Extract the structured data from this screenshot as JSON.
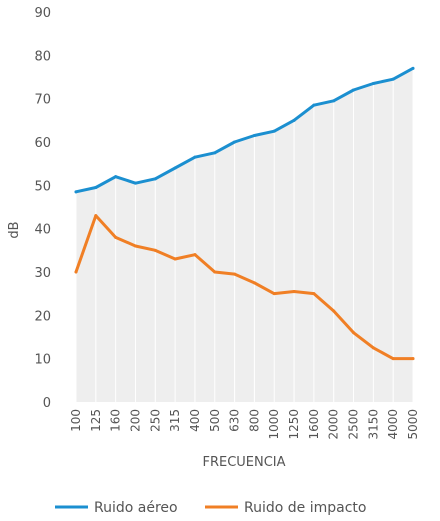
{
  "chart_data": {
    "type": "line",
    "xlabel": "FRECUENCIA",
    "ylabel": "dB",
    "ylim": [
      0,
      90
    ],
    "yticks": [
      "0",
      "10",
      "20",
      "30",
      "40",
      "50",
      "60",
      "70",
      "80",
      "90"
    ],
    "categories": [
      "100",
      "125",
      "160",
      "200",
      "250",
      "315",
      "400",
      "500",
      "630",
      "800",
      "1000",
      "1250",
      "1600",
      "2000",
      "2500",
      "3150",
      "4000",
      "5000"
    ],
    "grid": "vertical",
    "area_fill": "#eeeeee",
    "legend_position": "bottom",
    "series": [
      {
        "name": "Ruido aéreo",
        "color": "#1b8fd0",
        "values": [
          48.5,
          49.5,
          52,
          50.5,
          51.5,
          54,
          56.5,
          57.5,
          60,
          61.5,
          62.5,
          65,
          68.5,
          69.5,
          72,
          73.5,
          74.5,
          77
        ]
      },
      {
        "name": "Ruido de impacto",
        "color": "#f07f25",
        "values": [
          30,
          43,
          38,
          36,
          35,
          33,
          34,
          30,
          29.5,
          27.5,
          25,
          25.5,
          25,
          21,
          16,
          12.5,
          10,
          10
        ]
      }
    ]
  }
}
